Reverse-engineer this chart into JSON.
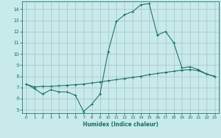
{
  "xlabel": "Humidex (Indice chaleur)",
  "bg_color": "#c8eaea",
  "grid_color": "#a8c8c8",
  "line_color": "#1a6b6b",
  "xlim": [
    -0.5,
    23.5
  ],
  "ylim": [
    4.7,
    14.7
  ],
  "xticks": [
    0,
    1,
    2,
    3,
    4,
    5,
    6,
    7,
    8,
    9,
    10,
    11,
    12,
    13,
    14,
    15,
    16,
    17,
    18,
    19,
    20,
    21,
    22,
    23
  ],
  "yticks": [
    5,
    6,
    7,
    8,
    9,
    10,
    11,
    12,
    13,
    14
  ],
  "line1_x": [
    0,
    1,
    2,
    3,
    4,
    5,
    6,
    7,
    8,
    9,
    10,
    11,
    12,
    13,
    14,
    15,
    16,
    17,
    18,
    19,
    20,
    21,
    22,
    23
  ],
  "line1_y": [
    7.3,
    6.9,
    6.4,
    6.8,
    6.6,
    6.6,
    6.3,
    4.85,
    5.5,
    6.4,
    10.2,
    12.9,
    13.5,
    13.8,
    14.4,
    14.5,
    11.7,
    12.0,
    11.0,
    8.75,
    8.85,
    8.6,
    8.2,
    8.0
  ],
  "line2_x": [
    0,
    1,
    2,
    3,
    4,
    5,
    6,
    7,
    8,
    9,
    10,
    11,
    12,
    13,
    14,
    15,
    16,
    17,
    18,
    19,
    20,
    21,
    22,
    23
  ],
  "line2_y": [
    7.3,
    7.05,
    7.1,
    7.1,
    7.15,
    7.2,
    7.25,
    7.3,
    7.4,
    7.5,
    7.6,
    7.7,
    7.8,
    7.9,
    8.0,
    8.15,
    8.25,
    8.35,
    8.45,
    8.55,
    8.6,
    8.5,
    8.2,
    8.0
  ]
}
